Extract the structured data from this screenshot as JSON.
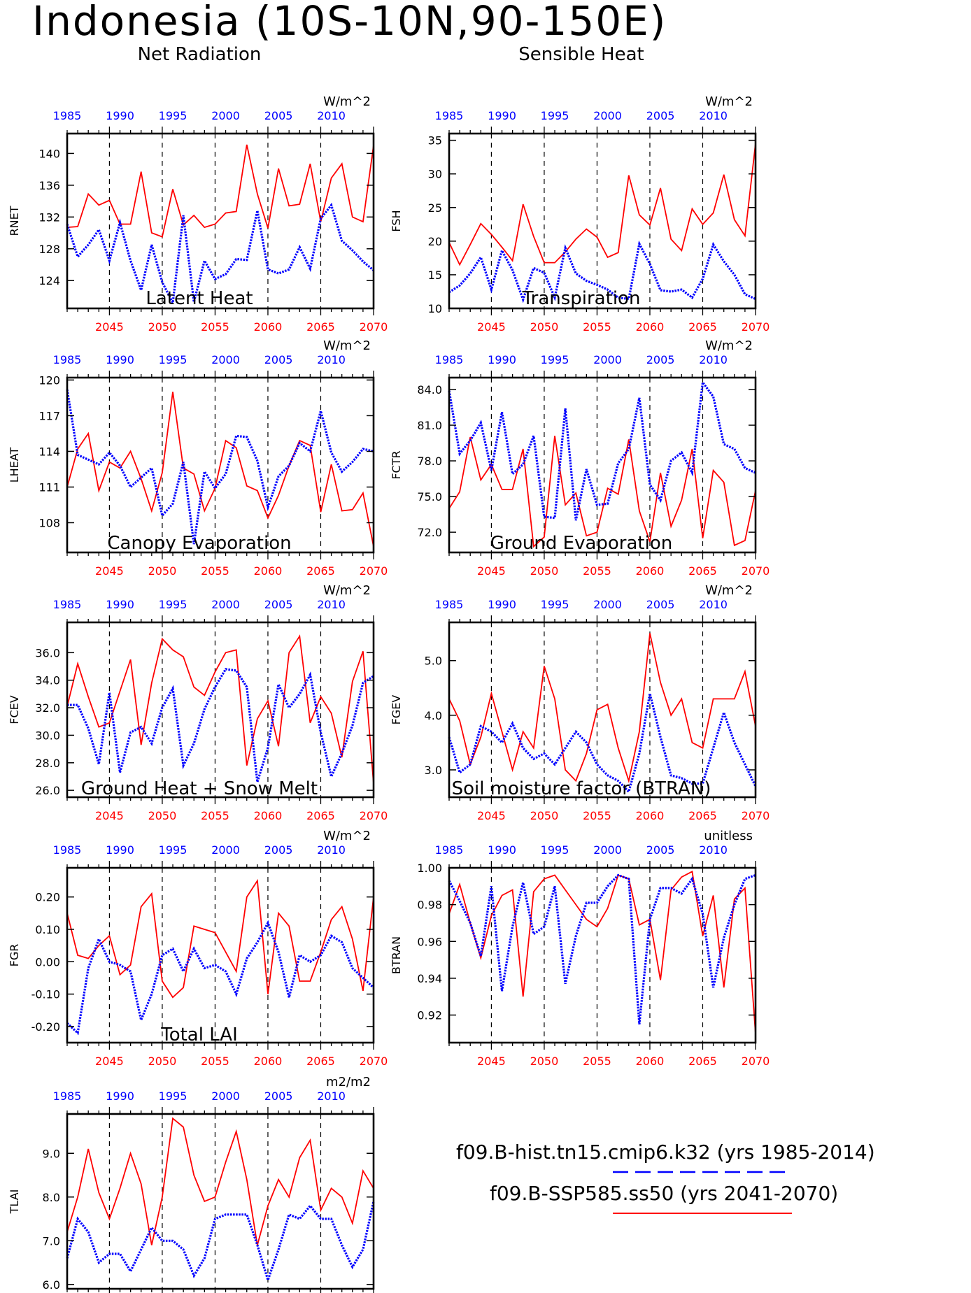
{
  "page": {
    "title": "Indonesia (10S-10N,90-150E)"
  },
  "legend": {
    "hist_label": "f09.B-hist.tn15.cmip6.k32 (yrs 1985-2014)",
    "ssp_label": "f09.B-SSP585.ss50 (yrs 2041-2070)",
    "hist_color": "#0000ff",
    "ssp_color": "#ff0000"
  },
  "axes_common": {
    "top_ticks": [
      "1985",
      "1990",
      "1995",
      "2000",
      "2005",
      "2010"
    ],
    "bottom_ticks": [
      "2045",
      "2050",
      "2055",
      "2060",
      "2065",
      "2070"
    ],
    "top_start_year": 1985,
    "bottom_start_year": 2041
  },
  "chart_data": [
    {
      "type": "line",
      "title": "Net Radiation",
      "ylabel": "RNET",
      "units": "W/m^2",
      "ylim": [
        120.5,
        142.5
      ],
      "yticks": [
        124,
        128,
        132,
        136,
        140
      ],
      "ytick_labels": [
        "124",
        "128",
        "132",
        "136",
        "140"
      ],
      "bottom_ticks": [
        "2045",
        "2050",
        "2055",
        "2060",
        "2065",
        "2070"
      ],
      "series": [
        {
          "role": "ssp",
          "values": [
            130.7,
            130.8,
            134.9,
            133.5,
            134.1,
            131.1,
            131.1,
            137.7,
            130.0,
            129.5,
            135.5,
            131.0,
            132.2,
            130.7,
            131.1,
            132.5,
            132.7,
            141.1,
            134.9,
            130.6,
            138.1,
            133.4,
            133.6,
            138.7,
            131.4,
            136.9,
            138.7,
            132.0,
            131.4,
            141.0
          ]
        },
        {
          "role": "hist",
          "values": [
            131.1,
            127.0,
            128.5,
            130.4,
            126.5,
            131.3,
            126.5,
            122.8,
            128.5,
            123.8,
            121.2,
            132.2,
            121.3,
            126.5,
            124.2,
            124.8,
            126.7,
            126.6,
            132.8,
            125.4,
            124.9,
            125.4,
            128.2,
            125.5,
            131.8,
            133.5,
            129.0,
            127.8,
            126.4,
            125.3
          ]
        }
      ]
    },
    {
      "type": "line",
      "title": "Sensible Heat",
      "ylabel": "FSH",
      "units": "W/m^2",
      "ylim": [
        10,
        36
      ],
      "yticks": [
        10,
        15,
        20,
        25,
        30,
        35
      ],
      "ytick_labels": [
        "10",
        "15",
        "20",
        "25",
        "30",
        "35"
      ],
      "bottom_ticks": [
        "2045",
        "2050",
        "2055",
        "2060",
        "2065",
        "2070"
      ],
      "series": [
        {
          "role": "ssp",
          "values": [
            19.8,
            16.5,
            19.5,
            22.6,
            21.0,
            19.1,
            17.1,
            25.5,
            20.7,
            16.8,
            16.8,
            18.4,
            20.3,
            21.8,
            20.6,
            17.6,
            18.3,
            29.8,
            23.9,
            22.4,
            27.9,
            20.3,
            18.6,
            24.8,
            22.5,
            24.2,
            29.9,
            23.2,
            20.8,
            34.5
          ]
        },
        {
          "role": "hist",
          "values": [
            12.4,
            13.4,
            15.2,
            17.6,
            12.8,
            18.6,
            15.7,
            11.3,
            16.0,
            15.3,
            11.6,
            19.0,
            15.2,
            14.1,
            13.5,
            12.8,
            11.6,
            11.4,
            19.6,
            16.6,
            12.7,
            12.5,
            12.8,
            11.6,
            14.4,
            19.5,
            17.0,
            15.0,
            12.1,
            11.4
          ]
        }
      ]
    },
    {
      "type": "line",
      "title": "Latent Heat",
      "ylabel": "LHEAT",
      "units": "W/m^2",
      "ylim": [
        105.5,
        120.2
      ],
      "yticks": [
        108,
        111,
        114,
        117,
        120
      ],
      "ytick_labels": [
        "108",
        "111",
        "114",
        "117",
        "120"
      ],
      "bottom_ticks": [
        "2045",
        "2050",
        "2055",
        "2060",
        "2065",
        "2070"
      ],
      "series": [
        {
          "role": "ssp",
          "values": [
            111.0,
            114.2,
            115.5,
            110.7,
            113.1,
            112.6,
            114.0,
            111.7,
            109.0,
            112.2,
            119.0,
            112.6,
            112.1,
            109.0,
            110.9,
            114.9,
            114.3,
            111.1,
            110.7,
            108.4,
            110.3,
            112.8,
            114.9,
            114.5,
            108.9,
            112.9,
            109.0,
            109.1,
            110.5,
            106.0
          ]
        },
        {
          "role": "hist",
          "values": [
            119.2,
            113.7,
            113.3,
            112.9,
            113.9,
            112.8,
            111.0,
            111.8,
            112.6,
            108.6,
            109.6,
            113.1,
            106.2,
            112.3,
            110.9,
            112.1,
            115.3,
            115.2,
            113.2,
            109.3,
            111.9,
            112.8,
            114.7,
            114.0,
            117.4,
            113.9,
            112.3,
            113.1,
            114.2,
            114.0
          ]
        }
      ]
    },
    {
      "type": "line",
      "title": "Transpiration",
      "ylabel": "FCTR",
      "units": "W/m^2",
      "ylim": [
        70.3,
        85.0
      ],
      "yticks": [
        72,
        75,
        78,
        81,
        84
      ],
      "ytick_labels": [
        "72.0",
        "75.0",
        "78.0",
        "81.0",
        "84.0"
      ],
      "bottom_ticks": [
        "2045",
        "2050",
        "2055",
        "2060",
        "2065",
        "2070"
      ],
      "series": [
        {
          "role": "ssp",
          "values": [
            74.0,
            75.4,
            80.0,
            76.4,
            77.7,
            75.6,
            75.6,
            79.0,
            70.8,
            71.6,
            80.1,
            74.3,
            75.3,
            71.7,
            72.0,
            75.7,
            75.2,
            79.8,
            73.8,
            71.2,
            77.0,
            72.5,
            74.7,
            79.0,
            71.5,
            77.2,
            76.2,
            70.9,
            71.3,
            75.5
          ]
        },
        {
          "role": "hist",
          "values": [
            83.9,
            78.6,
            79.7,
            81.2,
            77.2,
            82.1,
            76.9,
            77.7,
            80.1,
            73.3,
            73.2,
            82.4,
            73.0,
            77.3,
            74.3,
            74.4,
            77.8,
            79.0,
            83.3,
            76.0,
            74.7,
            78.0,
            78.7,
            77.0,
            84.6,
            83.4,
            79.4,
            79.0,
            77.4,
            77.0
          ]
        }
      ]
    },
    {
      "type": "line",
      "title": "Canopy Evaporation",
      "ylabel": "FCEV",
      "units": "W/m^2",
      "ylim": [
        25.5,
        38.2
      ],
      "yticks": [
        26,
        28,
        30,
        32,
        34,
        36
      ],
      "ytick_labels": [
        "26.0",
        "28.0",
        "30.0",
        "32.0",
        "34.0",
        "36.0"
      ],
      "bottom_ticks": [
        "2045",
        "2050",
        "2055",
        "2060",
        "2065",
        "2070"
      ],
      "series": [
        {
          "role": "ssp",
          "values": [
            32.1,
            35.2,
            32.8,
            30.6,
            30.9,
            33.2,
            35.5,
            29.3,
            33.8,
            37.0,
            36.2,
            35.7,
            33.5,
            32.9,
            34.6,
            36.0,
            36.2,
            27.8,
            31.2,
            32.5,
            29.2,
            36.0,
            37.2,
            30.9,
            32.8,
            31.6,
            28.4,
            33.9,
            36.1,
            26.5
          ]
        },
        {
          "role": "hist",
          "values": [
            32.2,
            32.2,
            30.5,
            27.9,
            33.1,
            27.3,
            30.2,
            30.6,
            29.4,
            32.0,
            33.4,
            27.8,
            29.4,
            31.9,
            33.5,
            34.8,
            34.7,
            33.5,
            26.6,
            29.1,
            33.7,
            32.0,
            33.0,
            34.4,
            30.2,
            27.0,
            28.7,
            30.7,
            33.8,
            34.3
          ]
        }
      ]
    },
    {
      "type": "line",
      "title": "Ground Evaporation",
      "ylabel": "FGEV",
      "units": "W/m^2",
      "ylim": [
        2.5,
        5.7
      ],
      "yticks": [
        3,
        4,
        5
      ],
      "ytick_labels": [
        "3.0",
        "4.0",
        "5.0"
      ],
      "bottom_ticks": [
        "2045",
        "2050",
        "2055",
        "2060",
        "2065",
        "2070"
      ],
      "series": [
        {
          "role": "ssp",
          "values": [
            4.3,
            3.9,
            3.1,
            3.6,
            4.4,
            3.7,
            3.0,
            3.7,
            3.4,
            4.9,
            4.3,
            3.0,
            2.8,
            3.3,
            4.1,
            4.2,
            3.4,
            2.8,
            3.7,
            5.5,
            4.6,
            4.0,
            4.3,
            3.5,
            3.4,
            4.3,
            4.3,
            4.3,
            4.8,
            3.8
          ]
        },
        {
          "role": "hist",
          "values": [
            3.6,
            2.95,
            3.1,
            3.8,
            3.7,
            3.5,
            3.85,
            3.4,
            3.2,
            3.3,
            3.1,
            3.4,
            3.7,
            3.5,
            3.1,
            2.9,
            2.8,
            2.6,
            3.3,
            4.4,
            3.6,
            2.9,
            2.85,
            2.75,
            2.75,
            3.4,
            4.05,
            3.5,
            3.1,
            2.7
          ]
        }
      ]
    },
    {
      "type": "line",
      "title": "Ground Heat + Snow Melt",
      "ylabel": "FGR",
      "units": "W/m^2",
      "ylim": [
        -0.25,
        0.29
      ],
      "yticks": [
        -0.2,
        -0.1,
        0.0,
        0.1,
        0.2
      ],
      "ytick_labels": [
        "-0.20",
        "-0.10",
        "0.00",
        "0.10",
        "0.20"
      ],
      "bottom_ticks": [
        "2045",
        "2050",
        "2055",
        "2060",
        "2065",
        "2070"
      ],
      "series": [
        {
          "role": "ssp",
          "values": [
            0.15,
            0.02,
            0.01,
            0.05,
            0.08,
            -0.04,
            -0.01,
            0.17,
            0.21,
            -0.06,
            -0.11,
            -0.08,
            0.11,
            0.1,
            0.09,
            0.03,
            -0.03,
            0.2,
            0.25,
            -0.1,
            0.15,
            0.11,
            -0.06,
            -0.06,
            0.03,
            0.13,
            0.17,
            0.07,
            -0.09,
            0.2
          ]
        },
        {
          "role": "hist",
          "values": [
            -0.19,
            -0.22,
            -0.02,
            0.07,
            0.0,
            -0.01,
            -0.03,
            -0.18,
            -0.1,
            0.02,
            0.04,
            -0.03,
            0.04,
            -0.02,
            -0.01,
            -0.03,
            -0.1,
            0.01,
            0.06,
            0.12,
            0.03,
            -0.11,
            0.02,
            0.0,
            0.02,
            0.08,
            0.06,
            -0.02,
            -0.05,
            -0.08
          ]
        }
      ]
    },
    {
      "type": "line",
      "title": "Soil moisture factor (BTRAN)",
      "ylabel": "BTRAN",
      "units": "unitless",
      "ylim": [
        0.905,
        1.0
      ],
      "yticks": [
        0.92,
        0.94,
        0.96,
        0.98,
        1.0
      ],
      "ytick_labels": [
        "0.92",
        "0.94",
        "0.96",
        "0.98",
        "1.00"
      ],
      "bottom_ticks": [
        "2045",
        "2050",
        "2055",
        "2060",
        "2065",
        "2070"
      ],
      "series": [
        {
          "role": "ssp",
          "values": [
            0.975,
            0.991,
            0.97,
            0.951,
            0.974,
            0.985,
            0.988,
            0.93,
            0.987,
            0.994,
            0.996,
            0.988,
            0.98,
            0.972,
            0.968,
            0.978,
            0.996,
            0.994,
            0.969,
            0.972,
            0.939,
            0.988,
            0.995,
            0.998,
            0.963,
            0.985,
            0.935,
            0.983,
            0.989,
            0.91
          ]
        },
        {
          "role": "hist",
          "values": [
            0.993,
            0.982,
            0.97,
            0.952,
            0.99,
            0.933,
            0.968,
            0.992,
            0.964,
            0.968,
            0.99,
            0.937,
            0.963,
            0.981,
            0.981,
            0.99,
            0.996,
            0.994,
            0.915,
            0.972,
            0.989,
            0.989,
            0.986,
            0.994,
            0.975,
            0.935,
            0.962,
            0.98,
            0.994,
            0.996
          ]
        }
      ]
    },
    {
      "type": "line",
      "title": "Total LAI",
      "ylabel": "TLAI",
      "units": "m2/m2",
      "ylim": [
        5.9,
        9.9
      ],
      "yticks": [
        6,
        7,
        8,
        9
      ],
      "ytick_labels": [
        "6.0",
        "7.0",
        "8.0",
        "9.0"
      ],
      "bottom_ticks": [
        "2045",
        "2050",
        "2055",
        "2060",
        "2065",
        "2070"
      ],
      "series": [
        {
          "role": "ssp",
          "values": [
            7.2,
            8.0,
            9.1,
            8.1,
            7.5,
            8.2,
            9.0,
            8.3,
            6.9,
            8.0,
            9.8,
            9.6,
            8.5,
            7.9,
            8.0,
            8.8,
            9.5,
            8.4,
            6.9,
            7.8,
            8.4,
            8.0,
            8.9,
            9.3,
            7.7,
            8.2,
            8.0,
            7.4,
            8.6,
            8.2
          ]
        },
        {
          "role": "hist",
          "values": [
            6.6,
            7.5,
            7.2,
            6.5,
            6.7,
            6.7,
            6.3,
            6.8,
            7.3,
            7.0,
            7.0,
            6.8,
            6.2,
            6.6,
            7.5,
            7.6,
            7.6,
            7.6,
            6.9,
            6.1,
            6.8,
            7.6,
            7.5,
            7.8,
            7.5,
            7.5,
            6.9,
            6.4,
            6.8,
            7.9
          ]
        }
      ]
    }
  ]
}
